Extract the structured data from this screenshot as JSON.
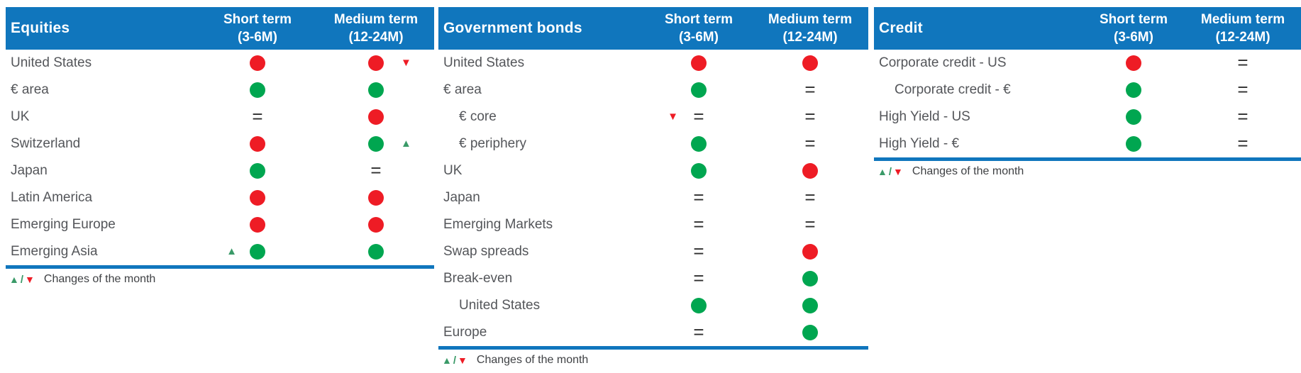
{
  "colors": {
    "header_blue": "#1076BD",
    "negative_red": "#EE1C25",
    "positive_green": "#00A650",
    "change_triangle_green": "#3A9A68",
    "label_text": "#54565A",
    "header_text": "#FFFFFF"
  },
  "glyphs": {
    "up": "▲",
    "down": "▼",
    "slash": "/",
    "equal": "="
  },
  "column_headers": {
    "short": {
      "line1": "Short term",
      "line2": "(3-6M)"
    },
    "medium": {
      "line1": "Medium term",
      "line2": "(12-24M)"
    }
  },
  "legend": {
    "text": "Changes of the month"
  },
  "tables": [
    {
      "id": "equities",
      "title": "Equities",
      "rows": [
        {
          "label": "United States",
          "indent": false,
          "short": {
            "symbol": "red"
          },
          "medium": {
            "symbol": "red",
            "change": "down",
            "change_side": "right"
          }
        },
        {
          "label": "€ area",
          "indent": false,
          "short": {
            "symbol": "green"
          },
          "medium": {
            "symbol": "green"
          }
        },
        {
          "label": "UK",
          "indent": false,
          "short": {
            "symbol": "eq"
          },
          "medium": {
            "symbol": "red"
          }
        },
        {
          "label": "Switzerland",
          "indent": false,
          "short": {
            "symbol": "red"
          },
          "medium": {
            "symbol": "green",
            "change": "up",
            "change_side": "right"
          }
        },
        {
          "label": "Japan",
          "indent": false,
          "short": {
            "symbol": "green"
          },
          "medium": {
            "symbol": "eq"
          }
        },
        {
          "label": "Latin America",
          "indent": false,
          "short": {
            "symbol": "red"
          },
          "medium": {
            "symbol": "red"
          }
        },
        {
          "label": "Emerging Europe",
          "indent": false,
          "short": {
            "symbol": "red"
          },
          "medium": {
            "symbol": "red"
          }
        },
        {
          "label": "Emerging Asia",
          "indent": false,
          "short": {
            "symbol": "green",
            "change": "up",
            "change_side": "left"
          },
          "medium": {
            "symbol": "green"
          }
        }
      ]
    },
    {
      "id": "government-bonds",
      "title": "Government bonds",
      "rows": [
        {
          "label": "United States",
          "indent": false,
          "short": {
            "symbol": "red"
          },
          "medium": {
            "symbol": "red"
          }
        },
        {
          "label": "€ area",
          "indent": false,
          "short": {
            "symbol": "green"
          },
          "medium": {
            "symbol": "eq"
          }
        },
        {
          "label": "€ core",
          "indent": true,
          "short": {
            "symbol": "eq",
            "change": "down",
            "change_side": "left"
          },
          "medium": {
            "symbol": "eq"
          }
        },
        {
          "label": "€ periphery",
          "indent": true,
          "short": {
            "symbol": "green"
          },
          "medium": {
            "symbol": "eq"
          }
        },
        {
          "label": "UK",
          "indent": false,
          "short": {
            "symbol": "green"
          },
          "medium": {
            "symbol": "red"
          }
        },
        {
          "label": "Japan",
          "indent": false,
          "short": {
            "symbol": "eq"
          },
          "medium": {
            "symbol": "eq"
          }
        },
        {
          "label": "Emerging Markets",
          "indent": false,
          "short": {
            "symbol": "eq"
          },
          "medium": {
            "symbol": "eq"
          }
        },
        {
          "label": "Swap spreads",
          "indent": false,
          "short": {
            "symbol": "eq"
          },
          "medium": {
            "symbol": "red"
          }
        },
        {
          "label": "Break-even",
          "indent": false,
          "short": {
            "symbol": "eq"
          },
          "medium": {
            "symbol": "green"
          }
        },
        {
          "label": "United States",
          "indent": true,
          "short": {
            "symbol": "green"
          },
          "medium": {
            "symbol": "green"
          }
        },
        {
          "label": "Europe",
          "indent": false,
          "short": {
            "symbol": "eq"
          },
          "medium": {
            "symbol": "green"
          }
        }
      ]
    },
    {
      "id": "credit",
      "title": "Credit",
      "rows": [
        {
          "label": "Corporate credit - US",
          "indent": false,
          "short": {
            "symbol": "red"
          },
          "medium": {
            "symbol": "eq"
          }
        },
        {
          "label": "Corporate credit - €",
          "indent": true,
          "short": {
            "symbol": "green"
          },
          "medium": {
            "symbol": "eq"
          }
        },
        {
          "label": "High Yield - US",
          "indent": false,
          "short": {
            "symbol": "green"
          },
          "medium": {
            "symbol": "eq"
          }
        },
        {
          "label": "High Yield - €",
          "indent": false,
          "short": {
            "symbol": "green"
          },
          "medium": {
            "symbol": "eq"
          }
        }
      ]
    }
  ]
}
